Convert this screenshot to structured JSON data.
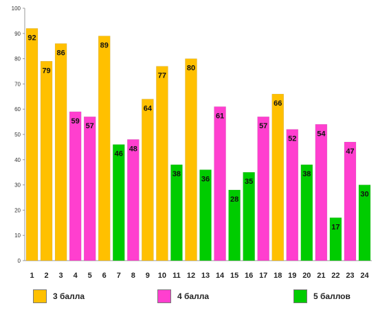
{
  "chart_data": {
    "type": "bar",
    "categories": [
      "1",
      "2",
      "3",
      "4",
      "5",
      "6",
      "7",
      "8",
      "9",
      "10",
      "11",
      "12",
      "13",
      "14",
      "15",
      "16",
      "17",
      "18",
      "19",
      "20",
      "21",
      "22",
      "23",
      "24"
    ],
    "values": [
      92,
      79,
      86,
      59,
      57,
      89,
      46,
      48,
      64,
      77,
      38,
      80,
      36,
      61,
      28,
      35,
      57,
      66,
      52,
      38,
      54,
      17,
      47,
      30
    ],
    "groups": [
      "3 балла",
      "3 балла",
      "3 балла",
      "4 балла",
      "4 балла",
      "3 балла",
      "5 баллов",
      "4 балла",
      "3 балла",
      "3 балла",
      "5 баллов",
      "3 балла",
      "5 баллов",
      "4 балла",
      "5 баллов",
      "5 баллов",
      "4 балла",
      "3 балла",
      "4 балла",
      "5 баллов",
      "4 балла",
      "5 баллов",
      "4 балла",
      "5 баллов"
    ],
    "yticks": [
      0,
      10,
      20,
      30,
      40,
      50,
      60,
      70,
      80,
      90,
      100
    ],
    "ylim": [
      0,
      100
    ],
    "grid": false,
    "legend_position": "bottom",
    "legend": [
      {
        "name": "3 балла",
        "color": "#FFC000"
      },
      {
        "name": "4 балла",
        "color": "#FF3FCF"
      },
      {
        "name": "5 баллов",
        "color": "#00CC00"
      }
    ]
  }
}
